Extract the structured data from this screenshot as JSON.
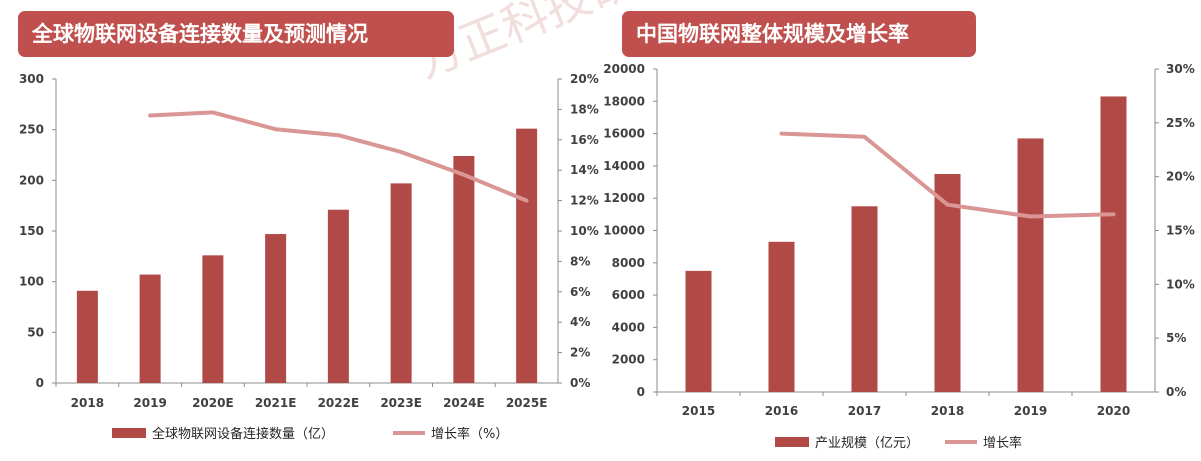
{
  "watermark": "方正科技研究",
  "chart_data": [
    {
      "type": "bar",
      "title": "全球物联网设备连接数量及预测情况",
      "categories": [
        "2018",
        "2019",
        "2020E",
        "2021E",
        "2022E",
        "2023E",
        "2024E",
        "2025E"
      ],
      "series": [
        {
          "name": "全球物联网设备连接数量（亿）",
          "type": "bar",
          "axis": "left",
          "color": "#b14a47",
          "values": [
            91,
            107,
            126,
            147,
            171,
            197,
            224,
            251
          ]
        },
        {
          "name": "增长率（%）",
          "type": "line",
          "axis": "right",
          "color": "#d99694",
          "values": [
            null,
            17.6,
            17.8,
            16.7,
            16.3,
            15.2,
            13.7,
            12.0
          ]
        }
      ],
      "ylim_left": [
        0,
        300
      ],
      "yticks_left": [
        "0",
        "50",
        "100",
        "150",
        "200",
        "250",
        "300"
      ],
      "ylim_right": [
        0,
        20
      ],
      "yticks_right": [
        "0%",
        "2%",
        "4%",
        "6%",
        "8%",
        "10%",
        "12%",
        "14%",
        "16%",
        "18%",
        "20%"
      ],
      "legend_position": "bottom"
    },
    {
      "type": "bar",
      "title": "中国物联网整体规模及增长率",
      "categories": [
        "2015",
        "2016",
        "2017",
        "2018",
        "2019",
        "2020"
      ],
      "series": [
        {
          "name": "产业规模（亿元）",
          "type": "bar",
          "axis": "left",
          "color": "#b14a47",
          "values": [
            7500,
            9300,
            11500,
            13500,
            15700,
            18300
          ]
        },
        {
          "name": "增长率",
          "type": "line",
          "axis": "right",
          "color": "#d99694",
          "values": [
            null,
            24.0,
            23.7,
            17.4,
            16.3,
            16.5
          ]
        }
      ],
      "ylim_left": [
        0,
        20000
      ],
      "yticks_left": [
        "0",
        "2000",
        "4000",
        "6000",
        "8000",
        "10000",
        "12000",
        "14000",
        "16000",
        "18000",
        "20000"
      ],
      "ylim_right": [
        0,
        30
      ],
      "yticks_right": [
        "0%",
        "5%",
        "10%",
        "15%",
        "20%",
        "25%",
        "30%"
      ],
      "legend_position": "bottom"
    }
  ]
}
